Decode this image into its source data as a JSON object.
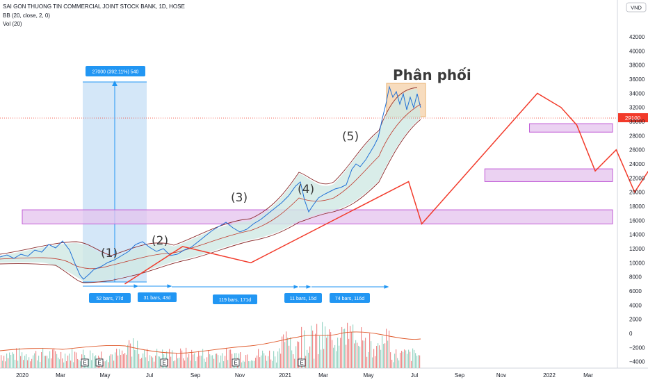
{
  "header": {
    "symbol_line": "SAI GON THUONG TIN COMMERCIAL JOINT STOCK BANK, 1D, HOSE",
    "indicator_bb": "BB (20, close, 2, 0)",
    "indicator_vol": "Vol (20)"
  },
  "currency_button": "VND",
  "last_price_label": "29100",
  "colors": {
    "price_line": "#1e6fd6",
    "bands": "#8b2d2d",
    "band_fill": "#cfe8e4",
    "wave_line": "#f23a2a",
    "zone_fill": "#e4c3ee",
    "zone_border": "#c05ad6",
    "measure_fill": "#cde3f7",
    "label_bg": "#2196f3",
    "volume_bar": "#f08b8b",
    "volume_ma": "#e05a2c",
    "distribution_fill": "#f7d9b8"
  },
  "chart_data": {
    "type": "line",
    "y_axis_ticks": [
      "42000",
      "40000",
      "38000",
      "36000",
      "34000",
      "32000",
      "30000",
      "28000",
      "26000",
      "24000",
      "22000",
      "20000",
      "18000",
      "16000",
      "14000",
      "12000",
      "10000",
      "8000",
      "6000",
      "4000",
      "2000",
      "0",
      "−2000",
      "−4000"
    ],
    "x_axis_ticks": [
      "2020",
      "Mar",
      "May",
      "Jul",
      "Sep",
      "Nov",
      "2021",
      "Mar",
      "May",
      "Jul",
      "Sep",
      "Nov",
      "2022",
      "Mar"
    ],
    "annotations": {
      "measure_label": "27000 (392.11%) 540",
      "distribution_label": "Phân phối",
      "waves": [
        "(1)",
        "(2)",
        "(3)",
        "(4)",
        "(5)"
      ],
      "bar_counts": [
        "52 bars, 77d",
        "31 bars, 43d",
        "119 bars, 171d",
        "11 bars, 15d",
        "74 bars, 116d"
      ],
      "earnings_markers": [
        "E",
        "E",
        "E",
        "E",
        "E"
      ]
    },
    "wave_path": [
      [
        0.39,
        7000
      ],
      [
        0.61,
        12300
      ],
      [
        0.87,
        10000
      ],
      [
        1.47,
        21500
      ],
      [
        1.52,
        15500
      ],
      [
        1.96,
        34000
      ],
      [
        2.05,
        32000
      ],
      [
        2.11,
        29500
      ],
      [
        2.18,
        23000
      ],
      [
        2.26,
        26000
      ],
      [
        2.33,
        20000
      ],
      [
        2.4,
        24000
      ],
      [
        2.48,
        18500
      ],
      [
        2.55,
        20000
      ],
      [
        2.62,
        16000
      ],
      [
        2.69,
        19500
      ],
      [
        2.78,
        16000
      ],
      [
        2.86,
        25000
      ]
    ],
    "zones": [
      {
        "from": 0.0,
        "to": 3.06,
        "low": 15500,
        "high": 17500
      },
      {
        "from": 1.76,
        "to": 2.66,
        "low": 21500,
        "high": 23300
      },
      {
        "from": 1.93,
        "to": 2.66,
        "low": 28500,
        "high": 29700
      }
    ],
    "last_price": 29100,
    "xlabel": "",
    "ylabel": ""
  }
}
